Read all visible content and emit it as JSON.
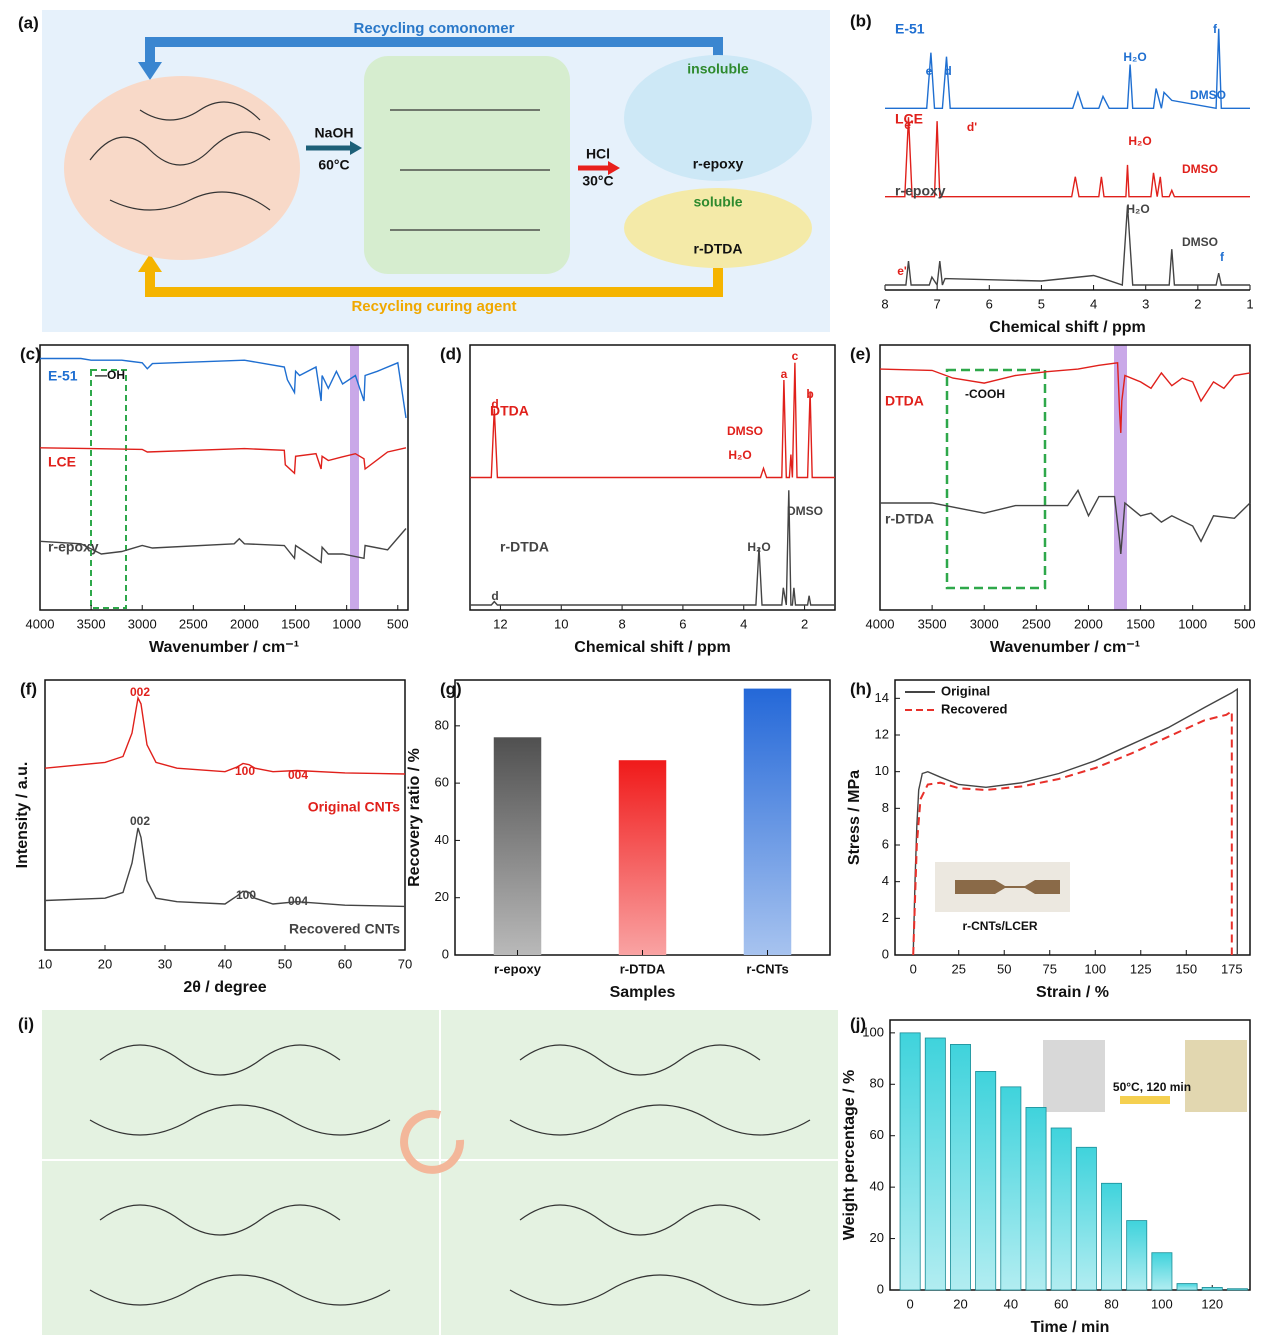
{
  "scheme": {
    "label": "(a)",
    "top_arrow": "Recycling comonomer",
    "bottom_arrow": "Recycling curing agent",
    "step1": [
      "NaOH",
      "60°C"
    ],
    "step2": [
      "HCl",
      "30°C"
    ],
    "insoluble": "insoluble",
    "r_epoxy": "r-epoxy",
    "soluble": "soluble",
    "r_dtda": "r-DTDA"
  },
  "network": {
    "label": "(i)"
  },
  "chart_data": [
    {
      "type": "line",
      "label": "(b)",
      "xlabel": "Chemical shift / ppm",
      "xlim": [
        8,
        1
      ],
      "xticks": [
        8,
        7,
        6,
        5,
        4,
        3,
        2,
        1
      ],
      "frame": false,
      "series": [
        {
          "name": "E-51",
          "color": "#1f6fd1",
          "x": [
            8,
            7.2,
            7.12,
            7.05,
            6.9,
            6.82,
            6.75,
            4.4,
            4.3,
            4.2,
            3.9,
            3.82,
            3.7,
            3.35,
            3.3,
            3.25,
            2.85,
            2.8,
            2.7,
            2.65,
            2.5,
            1.65,
            1.6,
            1.55,
            1
          ],
          "values": [
            0,
            0,
            70,
            0,
            0,
            65,
            0,
            0,
            20,
            0,
            0,
            15,
            0,
            0,
            55,
            0,
            0,
            25,
            0,
            20,
            10,
            0,
            100,
            0,
            0
          ]
        },
        {
          "name": "LCE",
          "color": "#e0201b",
          "x": [
            8,
            7.62,
            7.55,
            7.48,
            7.05,
            7.0,
            6.95,
            4.42,
            4.35,
            4.28,
            3.9,
            3.85,
            3.8,
            3.38,
            3.35,
            3.32,
            2.9,
            2.85,
            2.78,
            2.72,
            2.68,
            2.55,
            2.5,
            2.45,
            1
          ],
          "values": [
            0,
            0,
            100,
            0,
            0,
            95,
            0,
            0,
            25,
            0,
            0,
            25,
            0,
            0,
            40,
            0,
            0,
            30,
            0,
            25,
            0,
            0,
            8,
            0,
            0
          ]
        },
        {
          "name": "r-epoxy",
          "color": "#444444",
          "x": [
            8,
            7.6,
            7.55,
            7.5,
            7.15,
            7.1,
            7.0,
            6.95,
            6.9,
            6.85,
            5.0,
            4.0,
            3.9,
            3.45,
            3.35,
            3.25,
            2.55,
            2.5,
            2.45,
            1.65,
            1.6,
            1.55,
            1
          ],
          "values": [
            0,
            0,
            30,
            0,
            0,
            10,
            0,
            30,
            0,
            8,
            5,
            12,
            10,
            0,
            100,
            0,
            0,
            45,
            0,
            0,
            15,
            0,
            0
          ]
        }
      ],
      "annotations": [
        "e",
        "d",
        "H₂O",
        "f",
        "DMSO",
        "e'",
        "d'",
        "H₂O",
        "DMSO",
        "H₂O",
        "DMSO",
        "e'",
        "f"
      ]
    },
    {
      "type": "line",
      "label": "(c)",
      "xlabel": "Wavenumber / cm⁻¹",
      "xlim": [
        4000,
        400
      ],
      "xticks": [
        4000,
        3500,
        3000,
        2500,
        2000,
        1500,
        1000,
        500
      ],
      "frame": true,
      "series": [
        {
          "name": "E-51",
          "color": "#1f6fd1",
          "x": [
            4000,
            3600,
            3500,
            3200,
            3000,
            2950,
            2900,
            2000,
            1610,
            1580,
            1510,
            1500,
            1460,
            1300,
            1250,
            1240,
            1180,
            1100,
            1040,
            915,
            830,
            820,
            700,
            500,
            420
          ],
          "values": [
            90,
            90,
            88,
            88,
            85,
            78,
            84,
            88,
            80,
            65,
            50,
            75,
            70,
            80,
            40,
            70,
            55,
            75,
            60,
            70,
            40,
            70,
            75,
            85,
            20
          ]
        },
        {
          "name": "LCE",
          "color": "#e0201b",
          "x": [
            4000,
            3500,
            3000,
            2950,
            2000,
            1610,
            1600,
            1510,
            1500,
            1300,
            1250,
            1240,
            1180,
            1050,
            915,
            830,
            820,
            600,
            420
          ],
          "values": [
            85,
            84,
            83,
            80,
            84,
            82,
            65,
            55,
            75,
            78,
            60,
            75,
            70,
            74,
            78,
            72,
            60,
            80,
            85
          ]
        },
        {
          "name": "r-epoxy",
          "color": "#444444",
          "x": [
            4000,
            3600,
            3400,
            3200,
            3000,
            2900,
            2100,
            2050,
            2000,
            1610,
            1510,
            1500,
            1250,
            1240,
            1180,
            1040,
            830,
            820,
            600,
            420
          ],
          "values": [
            75,
            72,
            60,
            63,
            70,
            67,
            72,
            78,
            72,
            70,
            55,
            70,
            50,
            68,
            60,
            60,
            55,
            70,
            65,
            90
          ]
        }
      ],
      "annotations": [
        "—OH"
      ]
    },
    {
      "type": "line",
      "label": "(d)",
      "xlabel": "Chemical shift / ppm",
      "xlim": [
        13,
        1
      ],
      "xticks": [
        12,
        10,
        8,
        6,
        4,
        2
      ],
      "frame": true,
      "series": [
        {
          "name": "DTDA",
          "color": "#e0201b",
          "x": [
            13,
            12.3,
            12.2,
            12.1,
            3.45,
            3.35,
            3.25,
            2.75,
            2.68,
            2.6,
            2.5,
            2.45,
            2.4,
            2.32,
            2.25,
            1.9,
            1.82,
            1.75,
            1
          ],
          "values": [
            0,
            0,
            60,
            0,
            0,
            8,
            0,
            0,
            85,
            0,
            0,
            20,
            0,
            100,
            0,
            0,
            75,
            0,
            0
          ]
        },
        {
          "name": "r-DTDA",
          "color": "#444444",
          "x": [
            13,
            12.3,
            12.2,
            12.1,
            3.6,
            3.5,
            3.4,
            2.75,
            2.7,
            2.6,
            2.52,
            2.45,
            2.4,
            2.35,
            2.3,
            1.9,
            1.85,
            1.8,
            1
          ],
          "values": [
            0,
            0,
            3,
            0,
            0,
            50,
            0,
            0,
            15,
            0,
            100,
            0,
            0,
            15,
            0,
            0,
            8,
            0,
            0
          ]
        }
      ],
      "annotations": [
        "c",
        "a",
        "b",
        "d",
        "DMSO",
        "H₂O",
        "H₂O",
        "DMSO",
        "d"
      ]
    },
    {
      "type": "line",
      "label": "(e)",
      "xlabel": "Wavenumber / cm⁻¹",
      "xlim": [
        4000,
        450
      ],
      "xticks": [
        4000,
        3500,
        3000,
        2500,
        2000,
        1500,
        1000,
        500
      ],
      "frame": true,
      "series": [
        {
          "name": "DTDA",
          "color": "#e0201b",
          "x": [
            4000,
            3500,
            3300,
            3000,
            2700,
            2400,
            2100,
            1900,
            1720,
            1700,
            1690,
            1680,
            1650,
            1500,
            1400,
            1300,
            1200,
            1100,
            1000,
            920,
            800,
            700,
            600,
            450
          ],
          "values": [
            85,
            84,
            78,
            74,
            80,
            83,
            85,
            88,
            90,
            50,
            35,
            60,
            80,
            75,
            70,
            82,
            72,
            78,
            75,
            60,
            75,
            70,
            80,
            82
          ]
        },
        {
          "name": "r-DTDA",
          "color": "#444444",
          "x": [
            4000,
            3500,
            3000,
            2700,
            2200,
            2100,
            2000,
            1900,
            1750,
            1700,
            1690,
            1650,
            1500,
            1400,
            1300,
            1200,
            1000,
            920,
            800,
            600,
            450
          ],
          "values": [
            80,
            80,
            72,
            78,
            78,
            90,
            70,
            85,
            85,
            50,
            40,
            80,
            70,
            72,
            65,
            70,
            62,
            50,
            70,
            68,
            80
          ]
        }
      ],
      "annotations": [
        "-COOH"
      ]
    },
    {
      "type": "line",
      "label": "(f)",
      "xlabel": "2θ / degree",
      "ylabel": "Intensity / a.u.",
      "xlim": [
        10,
        70
      ],
      "xticks": [
        10,
        20,
        30,
        40,
        50,
        60,
        70
      ],
      "frame": true,
      "series": [
        {
          "name": "Original CNTs",
          "color": "#e0201b",
          "x": [
            10,
            20,
            23,
            24.5,
            25.5,
            26,
            27,
            28.5,
            32,
            40,
            42,
            43,
            44,
            45,
            48,
            52,
            60,
            70
          ],
          "values": [
            40,
            45,
            50,
            70,
            100,
            95,
            60,
            45,
            40,
            37,
            41,
            44,
            43,
            40,
            37,
            38,
            36,
            35
          ]
        },
        {
          "name": "Recovered CNTs",
          "color": "#444444",
          "x": [
            10,
            20,
            23,
            24.5,
            25.5,
            26,
            27,
            28.5,
            32,
            40,
            42,
            43,
            44,
            45,
            48,
            52,
            60,
            70
          ],
          "values": [
            38,
            40,
            45,
            70,
            100,
            92,
            55,
            40,
            37,
            35,
            42,
            46,
            45,
            40,
            35,
            37,
            34,
            33
          ]
        }
      ],
      "annotations": [
        "002",
        "100",
        "004",
        "002",
        "100",
        "004"
      ]
    },
    {
      "type": "bar",
      "label": "(g)",
      "xlabel": "Samples",
      "ylabel": "Recovery ratio / %",
      "categories": [
        "r-epoxy",
        "r-DTDA",
        "r-CNTs"
      ],
      "values": [
        76,
        68,
        93
      ],
      "colors": [
        "#505050",
        "#f01a1a",
        "#2468d8"
      ],
      "ylim": [
        0,
        96
      ],
      "yticks": [
        0,
        20,
        40,
        60,
        80
      ],
      "frame": true
    },
    {
      "type": "line",
      "label": "(h)",
      "xlabel": "Strain / %",
      "ylabel": "Stress / MPa",
      "xlim": [
        -10,
        185
      ],
      "xticks": [
        0,
        25,
        50,
        75,
        100,
        125,
        150,
        175
      ],
      "ylim": [
        0,
        15
      ],
      "yticks": [
        0,
        2,
        4,
        6,
        8,
        10,
        12,
        14
      ],
      "frame": true,
      "legend": "upper left",
      "series": [
        {
          "name": "Original",
          "color": "#444444",
          "dash": false,
          "x": [
            0,
            1,
            2,
            3,
            5,
            8,
            15,
            25,
            40,
            60,
            80,
            100,
            120,
            140,
            160,
            175,
            178,
            178
          ],
          "values": [
            0,
            4,
            7,
            9,
            9.9,
            10,
            9.7,
            9.3,
            9.15,
            9.4,
            9.9,
            10.6,
            11.5,
            12.4,
            13.5,
            14.3,
            14.5,
            0
          ]
        },
        {
          "name": "Recovered",
          "color": "#e8302a",
          "dash": true,
          "x": [
            0,
            2,
            4,
            8,
            15,
            25,
            40,
            60,
            80,
            100,
            120,
            140,
            160,
            172,
            175,
            175
          ],
          "values": [
            0,
            6,
            8.5,
            9.3,
            9.4,
            9.1,
            9.0,
            9.2,
            9.6,
            10.2,
            11,
            11.9,
            12.8,
            13.1,
            13.3,
            0
          ]
        }
      ],
      "annotations": [
        "r-CNTs/LCER"
      ]
    },
    {
      "type": "bar",
      "label": "(j)",
      "xlabel": "Time / min",
      "ylabel": "Weight percentage / %",
      "x": [
        0,
        10,
        20,
        30,
        40,
        50,
        60,
        70,
        80,
        90,
        100,
        110,
        120,
        130
      ],
      "values": [
        100,
        98,
        95.5,
        85,
        79,
        71,
        63,
        55.5,
        41.5,
        27,
        14.5,
        2.5,
        1,
        0.5
      ],
      "color": "#3fd3dc",
      "xlim": [
        -8,
        135
      ],
      "xticks": [
        0,
        20,
        40,
        60,
        80,
        100,
        120
      ],
      "ylim": [
        0,
        105
      ],
      "yticks": [
        0,
        20,
        40,
        60,
        80,
        100
      ],
      "frame": true,
      "annotations": [
        "50°C, 120 min"
      ]
    }
  ]
}
